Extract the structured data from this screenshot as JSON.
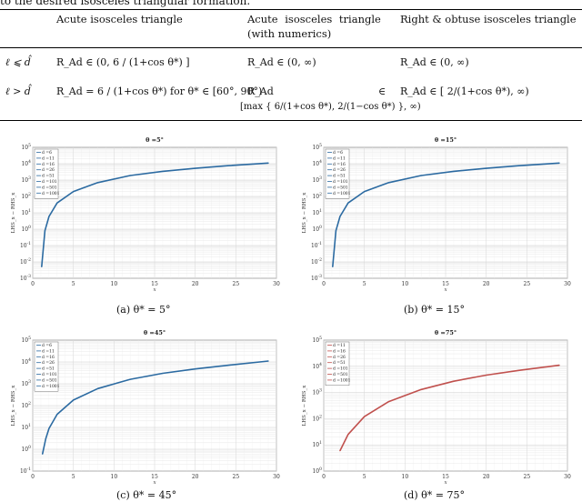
{
  "doc": {
    "intro_line": "to the desired isosceles triangular formation.",
    "table": {
      "headers": [
        "Acute isosceles triangle",
        "Acute  isosceles  triangle",
        "(with numerics)",
        "Right & obtuse isosceles triangle"
      ],
      "rows": [
        {
          "cond": "ℓ ⩽ d̂",
          "c1": "R_Ad ∈ (0,  6 / (1+cos θ*) ]",
          "c2": "R_Ad ∈ (0, ∞)",
          "c3": "R_Ad ∈ (0, ∞)"
        },
        {
          "cond": "ℓ > d̂",
          "c1": "R_Ad = 6 / (1+cos θ*)  for θ* ∈ [60°, 90°)",
          "c2a": "R_Ad",
          "c2b": "∈",
          "c2c": "[max { 6/(1+cos θ*), 2/(1−cos θ*) }, ∞)",
          "c3": "R_Ad ∈ [ 2/(1+cos θ*), ∞)"
        }
      ]
    },
    "figures": [
      {
        "title": "θ =5°",
        "caption": "(a)  θ* = 5°"
      },
      {
        "title": "θ =15°",
        "caption": "(b)  θ* = 15°"
      },
      {
        "title": "θ =45°",
        "caption": "(c)  θ* = 45°"
      },
      {
        "title": "θ =75°",
        "caption": "(d)  θ* = 75°"
      }
    ]
  },
  "chart_data": [
    {
      "type": "line",
      "title": "θ =5°",
      "xlabel": "x",
      "ylabel": "LHS_x − RHS_x",
      "xlim": [
        0,
        30
      ],
      "yscale": "log",
      "ylim": [
        0.001,
        100000.0
      ],
      "xticks": [
        0,
        5,
        10,
        15,
        20,
        25,
        30
      ],
      "yticks": [
        "10^-3",
        "10^-2",
        "10^-1",
        "10^0",
        "10^1",
        "10^2",
        "10^3",
        "10^4",
        "10^5"
      ],
      "legend": [
        "d =6",
        "d =11",
        "d =16",
        "d =26",
        "d =51",
        "d =101",
        "d =501",
        "d =1001"
      ],
      "legend_placement": "top-left",
      "grid": true,
      "series_color": "#2b6aa1",
      "x": [
        1.1,
        1.5,
        2,
        3,
        5,
        8,
        12,
        16,
        20,
        24,
        29
      ],
      "y": [
        0.005,
        0.8,
        6,
        40,
        200,
        700,
        1900,
        3400,
        5200,
        7500,
        11000
      ]
    },
    {
      "type": "line",
      "title": "θ =15°",
      "xlabel": "x",
      "ylabel": "LHS_x − RHS_x",
      "xlim": [
        0,
        30
      ],
      "yscale": "log",
      "ylim": [
        0.001,
        100000.0
      ],
      "xticks": [
        0,
        5,
        10,
        15,
        20,
        25,
        30
      ],
      "yticks": [
        "10^-3",
        "10^-2",
        "10^-1",
        "10^0",
        "10^1",
        "10^2",
        "10^3",
        "10^4",
        "10^5"
      ],
      "legend": [
        "d =6",
        "d =11",
        "d =16",
        "d =26",
        "d =51",
        "d =101",
        "d =501",
        "d =1001"
      ],
      "legend_placement": "top-left",
      "grid": true,
      "series_color": "#2b6aa1",
      "x": [
        1.1,
        1.5,
        2,
        3,
        5,
        8,
        12,
        16,
        20,
        24,
        29
      ],
      "y": [
        0.005,
        0.8,
        6,
        40,
        200,
        700,
        1900,
        3400,
        5200,
        7500,
        11000
      ]
    },
    {
      "type": "line",
      "title": "θ =45°",
      "xlabel": "x",
      "ylabel": "LHS_x − RHS_x",
      "xlim": [
        0,
        30
      ],
      "yscale": "log",
      "ylim": [
        0.1,
        100000.0
      ],
      "xticks": [
        0,
        5,
        10,
        15,
        20,
        25,
        30
      ],
      "yticks": [
        "10^-1",
        "10^0",
        "10^1",
        "10^2",
        "10^3",
        "10^4",
        "10^5"
      ],
      "legend": [
        "d =6",
        "d =11",
        "d =16",
        "d =26",
        "d =51",
        "d =101",
        "d =501",
        "d =1001"
      ],
      "legend_placement": "top-left",
      "grid": true,
      "series_color": "#2b6aa1",
      "x": [
        1.2,
        1.6,
        2,
        3,
        5,
        8,
        12,
        16,
        20,
        24,
        29
      ],
      "y": [
        0.6,
        3,
        9,
        40,
        180,
        600,
        1600,
        3000,
        4800,
        7000,
        11000
      ]
    },
    {
      "type": "line",
      "title": "θ =75°",
      "xlabel": "x",
      "ylabel": "LHS_x − RHS_x",
      "xlim": [
        0,
        30
      ],
      "yscale": "log",
      "ylim": [
        1,
        100000.0
      ],
      "xticks": [
        0,
        5,
        10,
        15,
        20,
        25,
        30
      ],
      "yticks": [
        "10^0",
        "10^1",
        "10^2",
        "10^3",
        "10^4",
        "10^5"
      ],
      "legend": [
        "d =11",
        "d =16",
        "d =26",
        "d =51",
        "d =101",
        "d =501",
        "d =1001"
      ],
      "legend_placement": "top-left",
      "grid": true,
      "series_color": "#c0504d",
      "x": [
        2,
        3,
        5,
        8,
        12,
        16,
        20,
        24,
        29
      ],
      "y": [
        6,
        25,
        120,
        450,
        1300,
        2700,
        4600,
        7000,
        11000
      ]
    }
  ]
}
